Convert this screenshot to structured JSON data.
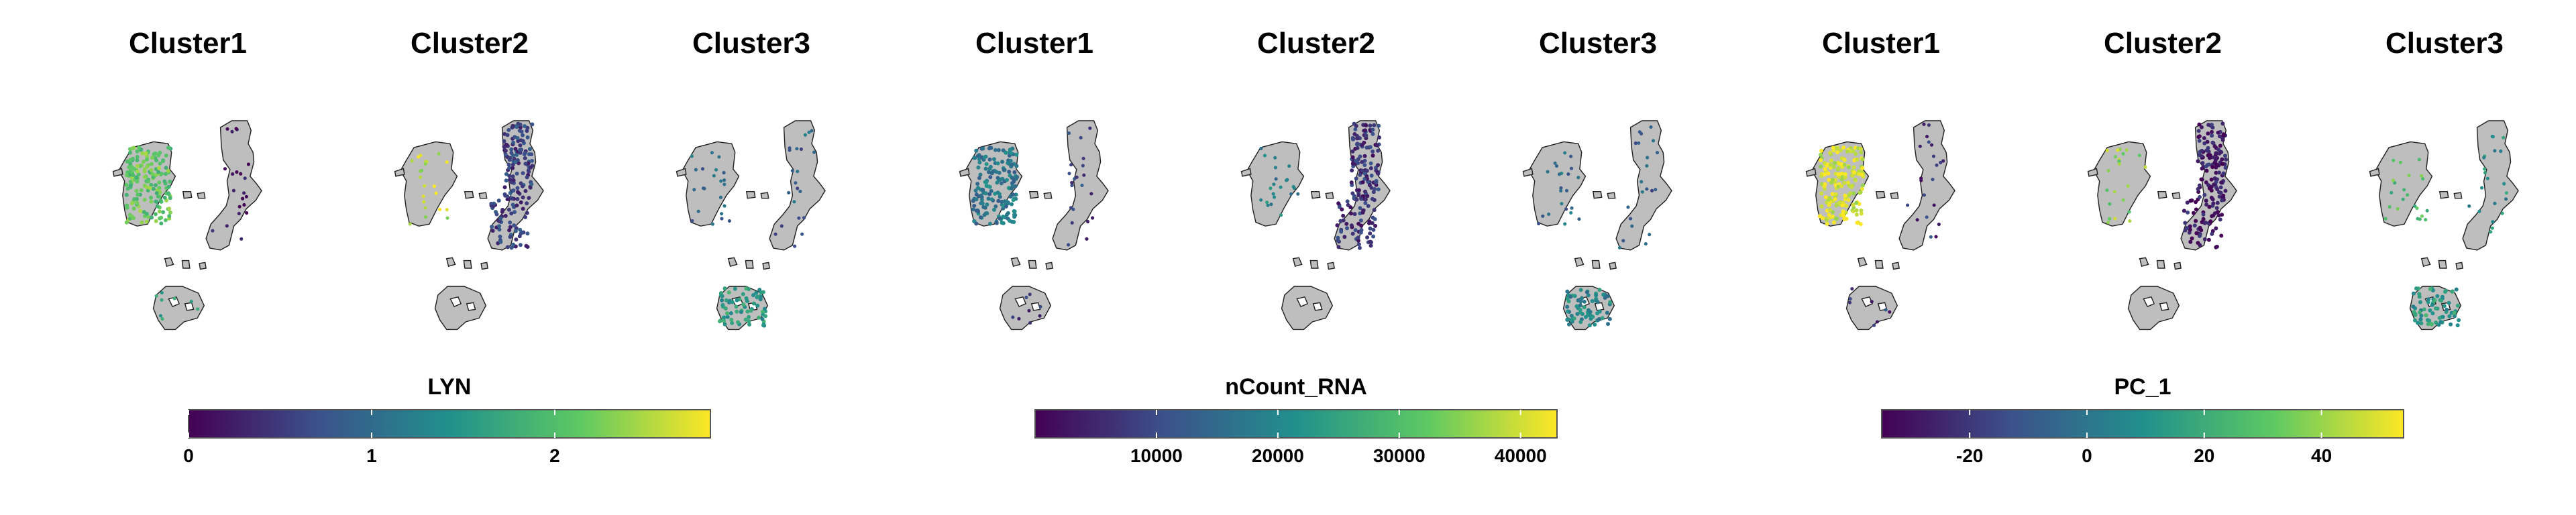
{
  "chart_data": {
    "type": "scatter",
    "features": [
      {
        "legend_title": "LYN",
        "range": [
          0,
          2.85
        ],
        "ticks": [
          0,
          1,
          2
        ],
        "tick_labels": [
          "0",
          "1",
          "2"
        ],
        "panels": [
          {
            "title": "Cluster1",
            "level": {
              "c1": 0.75,
              "c2": 0.05,
              "c3": 0.6
            }
          },
          {
            "title": "Cluster2",
            "level": {
              "c1": 0.9,
              "c2": 0.2,
              "c3": null
            }
          },
          {
            "title": "Cluster3",
            "level": {
              "c1": 0.35,
              "c2": 0.3,
              "c3": 0.55
            }
          }
        ]
      },
      {
        "legend_title": "nCount_RNA",
        "range": [
          0,
          43000
        ],
        "ticks": [
          10000,
          20000,
          30000,
          40000
        ],
        "tick_labels": [
          "10000",
          "20000",
          "30000",
          "40000"
        ],
        "panels": [
          {
            "title": "Cluster1",
            "level": {
              "c1": 0.4,
              "c2": 0.2,
              "c3": 0.2
            }
          },
          {
            "title": "Cluster2",
            "level": {
              "c1": 0.45,
              "c2": 0.15,
              "c3": null
            }
          },
          {
            "title": "Cluster3",
            "level": {
              "c1": 0.35,
              "c2": 0.3,
              "c3": 0.45
            }
          }
        ]
      },
      {
        "legend_title": "PC_1",
        "range": [
          -35,
          54
        ],
        "ticks": [
          -20,
          0,
          20,
          40
        ],
        "tick_labels": [
          "-20",
          "0",
          "20",
          "40"
        ],
        "panels": [
          {
            "title": "Cluster1",
            "level": {
              "c1": 0.95,
              "c2": 0.15,
              "c3": 0.18
            }
          },
          {
            "title": "Cluster2",
            "level": {
              "c1": 0.82,
              "c2": 0.08,
              "c3": null
            }
          },
          {
            "title": "Cluster3",
            "level": {
              "c1": 0.7,
              "c2": 0.5,
              "c3": 0.55
            }
          }
        ]
      }
    ],
    "background_cells_color": "#bebebe",
    "colormap": [
      "#440154",
      "#3b528b",
      "#21908c",
      "#5dc963",
      "#fde725"
    ],
    "legend_placement": "bottom"
  }
}
